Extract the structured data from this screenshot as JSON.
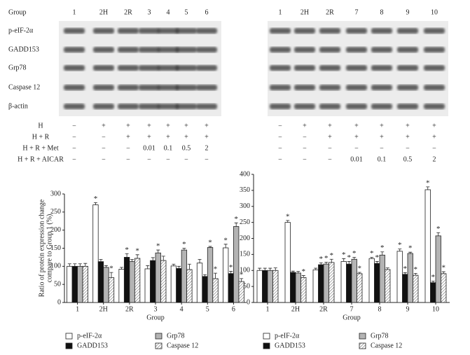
{
  "blots": {
    "group_label": "Group",
    "proteins": [
      "p-eIF-2α",
      "GADD153",
      "Grp78",
      "Caspase 12",
      "β-actin"
    ],
    "left_lanes": [
      "1",
      "2H",
      "2R",
      "3",
      "4",
      "5",
      "6"
    ],
    "right_lanes": [
      "1",
      "2H",
      "2R",
      "7",
      "8",
      "9",
      "10"
    ]
  },
  "treatments": {
    "labels": [
      "H",
      "H + R",
      "H + R + Met",
      "H + R + AICAR"
    ],
    "left": [
      [
        "−",
        "+",
        "+",
        "+",
        "+",
        "+",
        "+"
      ],
      [
        "−",
        "−",
        "+",
        "+",
        "+",
        "+",
        "+"
      ],
      [
        "−",
        "−",
        "−",
        "0.01",
        "0.1",
        "0.5",
        "2"
      ],
      [
        "−",
        "−",
        "−",
        "−",
        "−",
        "−",
        "−"
      ]
    ],
    "right": [
      [
        "−",
        "+",
        "+",
        "+",
        "+",
        "+",
        "+"
      ],
      [
        "−",
        "−",
        "+",
        "+",
        "+",
        "+",
        "+"
      ],
      [
        "−",
        "−",
        "−",
        "−",
        "−",
        "−",
        "−"
      ],
      [
        "−",
        "−",
        "−",
        "0.01",
        "0.1",
        "0.5",
        "2"
      ]
    ]
  },
  "chart_data": [
    {
      "type": "bar",
      "ylabel": [
        "Ratio of protein expression change",
        "compare to Group 1 (%)"
      ],
      "xlabel": "Group",
      "categories": [
        "1",
        "2H",
        "2R",
        "3",
        "4",
        "5",
        "6"
      ],
      "ylim": [
        0,
        300
      ],
      "yticks": [
        0,
        50,
        100,
        150,
        200,
        250,
        300
      ],
      "series": [
        {
          "name": "p-eIF-2α",
          "color": "#ffffff",
          "values": [
            100,
            270,
            92,
            93,
            101,
            109,
            151
          ],
          "errors": [
            7,
            6,
            5,
            9,
            5,
            10,
            10
          ],
          "sig": [
            null,
            "*",
            null,
            null,
            null,
            null,
            "*"
          ]
        },
        {
          "name": "GADD153",
          "color": "#111111",
          "values": [
            100,
            113,
            125,
            116,
            94,
            72,
            80
          ],
          "errors": [
            7,
            6,
            10,
            8,
            6,
            5,
            6
          ],
          "sig": [
            null,
            null,
            "*",
            null,
            null,
            null,
            "*"
          ]
        },
        {
          "name": "Grp78",
          "color": "#b4b4b4",
          "values": [
            100,
            97,
            113,
            137,
            145,
            152,
            210
          ],
          "errors": [
            7,
            5,
            6,
            8,
            5,
            3,
            10
          ],
          "sig": [
            null,
            null,
            null,
            "*",
            "*",
            "*",
            "*"
          ]
        },
        {
          "name": "Caspase 12",
          "color": "#ffffff",
          "pattern": "hatch",
          "values": [
            100,
            69,
            122,
            116,
            91,
            66,
            58
          ],
          "errors": [
            8,
            14,
            10,
            12,
            15,
            15,
            8
          ],
          "sig": [
            null,
            "*",
            "*",
            null,
            null,
            "*",
            "*"
          ]
        }
      ]
    },
    {
      "type": "bar",
      "xlabel": "Group",
      "categories": [
        "1",
        "2H",
        "2R",
        "7",
        "8",
        "9",
        "10"
      ],
      "ylim": [
        0,
        400
      ],
      "yticks": [
        0,
        50,
        100,
        150,
        200,
        250,
        300,
        350,
        400
      ],
      "series": [
        {
          "name": "p-eIF-2α",
          "color": "#ffffff",
          "values": [
            100,
            250,
            102,
            128,
            137,
            160,
            352
          ],
          "errors": [
            7,
            6,
            5,
            9,
            4,
            7,
            9
          ],
          "sig": [
            null,
            "*",
            null,
            "*",
            "*",
            "*",
            "*"
          ]
        },
        {
          "name": "GADD153",
          "color": "#111111",
          "values": [
            100,
            94,
            118,
            120,
            122,
            88,
            62
          ],
          "errors": [
            7,
            4,
            6,
            8,
            6,
            5,
            5
          ],
          "sig": [
            null,
            null,
            "*",
            "*",
            "*",
            "*",
            "*"
          ]
        },
        {
          "name": "Grp78",
          "color": "#b4b4b4",
          "values": [
            100,
            92,
            120,
            135,
            148,
            153,
            208
          ],
          "errors": [
            7,
            5,
            6,
            6,
            10,
            4,
            10
          ],
          "sig": [
            null,
            null,
            "*",
            "*",
            "*",
            "*",
            "*"
          ]
        },
        {
          "name": "Caspase 12",
          "color": "#ffffff",
          "pattern": "hatch",
          "values": [
            100,
            78,
            125,
            90,
            103,
            85,
            90
          ],
          "errors": [
            8,
            6,
            10,
            4,
            5,
            6,
            6
          ],
          "sig": [
            null,
            "*",
            "*",
            "*",
            null,
            "*",
            "*"
          ]
        }
      ]
    }
  ]
}
